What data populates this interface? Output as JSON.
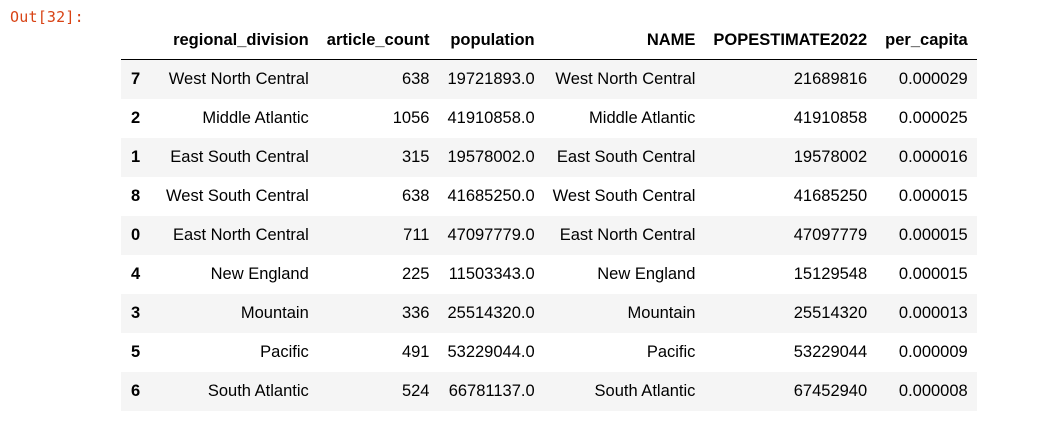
{
  "prompt": "Out[32]:",
  "table": {
    "columns": [
      "",
      "regional_division",
      "article_count",
      "population",
      "NAME",
      "POPESTIMATE2022",
      "per_capita"
    ],
    "rows": [
      {
        "index": "7",
        "cells": [
          "West North Central",
          "638",
          "19721893.0",
          "West North Central",
          "21689816",
          "0.000029"
        ]
      },
      {
        "index": "2",
        "cells": [
          "Middle Atlantic",
          "1056",
          "41910858.0",
          "Middle Atlantic",
          "41910858",
          "0.000025"
        ]
      },
      {
        "index": "1",
        "cells": [
          "East South Central",
          "315",
          "19578002.0",
          "East South Central",
          "19578002",
          "0.000016"
        ]
      },
      {
        "index": "8",
        "cells": [
          "West South Central",
          "638",
          "41685250.0",
          "West South Central",
          "41685250",
          "0.000015"
        ]
      },
      {
        "index": "0",
        "cells": [
          "East North Central",
          "711",
          "47097779.0",
          "East North Central",
          "47097779",
          "0.000015"
        ]
      },
      {
        "index": "4",
        "cells": [
          "New England",
          "225",
          "11503343.0",
          "New England",
          "15129548",
          "0.000015"
        ]
      },
      {
        "index": "3",
        "cells": [
          "Mountain",
          "336",
          "25514320.0",
          "Mountain",
          "25514320",
          "0.000013"
        ]
      },
      {
        "index": "5",
        "cells": [
          "Pacific",
          "491",
          "53229044.0",
          "Pacific",
          "53229044",
          "0.000009"
        ]
      },
      {
        "index": "6",
        "cells": [
          "South Atlantic",
          "524",
          "66781137.0",
          "South Atlantic",
          "67452940",
          "0.000008"
        ]
      }
    ]
  },
  "colors": {
    "prompt": "#d84315",
    "row_stripe": "#f5f5f5",
    "text": "#000000"
  }
}
